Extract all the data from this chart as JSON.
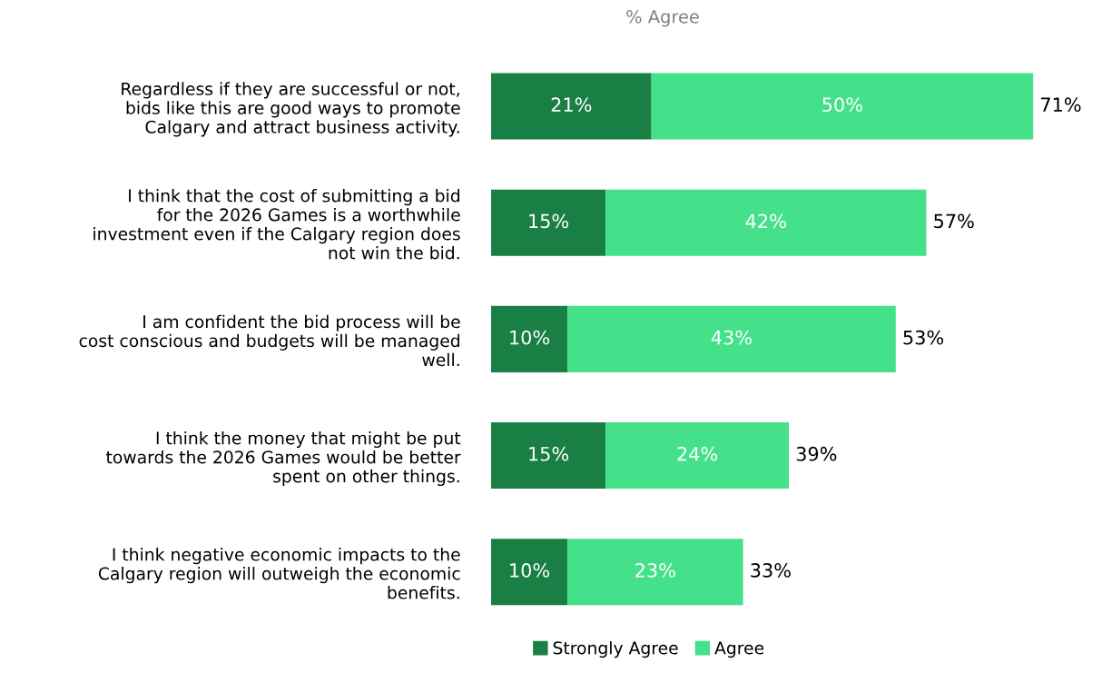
{
  "chart_data": {
    "type": "bar",
    "orientation": "horizontal",
    "stacked": true,
    "title": "% Agree",
    "categories": [
      "Regardless if they are successful or not, bids like this are good ways to promote Calgary and attract business activity.",
      "I think that the cost of submitting a bid for the 2026 Games is a worthwhile investment even if the Calgary region does not win the bid.",
      "I am confident the bid process will be cost conscious and budgets will be managed well.",
      "I think the money that might be put towards the 2026 Games would be better spent on other things.",
      "I think negative economic impacts to the Calgary region will outweigh the economic benefits."
    ],
    "series": [
      {
        "name": "Strongly Agree",
        "color": "#1a7f45",
        "values": [
          21,
          15,
          10,
          15,
          10
        ],
        "value_labels": [
          "21%",
          "15%",
          "10%",
          "15%",
          "10%"
        ]
      },
      {
        "name": "Agree",
        "color": "#44e08a",
        "values": [
          50,
          42,
          43,
          24,
          23
        ],
        "value_labels": [
          "50%",
          "42%",
          "43%",
          "24%",
          "23%"
        ]
      }
    ],
    "totals": [
      "71%",
      "57%",
      "53%",
      "39%",
      "33%"
    ],
    "legend": "bottom",
    "grid": false
  }
}
